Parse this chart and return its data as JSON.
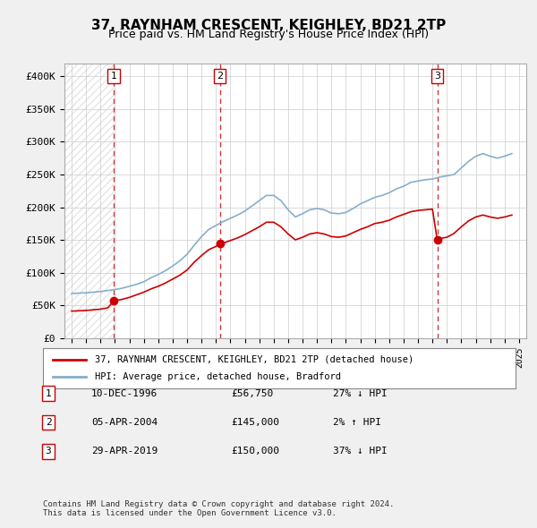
{
  "title": "37, RAYNHAM CRESCENT, KEIGHLEY, BD21 2TP",
  "subtitle": "Price paid vs. HM Land Registry's House Price Index (HPI)",
  "ylabel": "",
  "ylim": [
    0,
    420000
  ],
  "yticks": [
    0,
    50000,
    100000,
    150000,
    200000,
    250000,
    300000,
    350000,
    400000
  ],
  "ytick_labels": [
    "£0",
    "£50K",
    "£100K",
    "£150K",
    "£200K",
    "£250K",
    "£300K",
    "£350K",
    "£400K"
  ],
  "background_color": "#f0f0f0",
  "plot_bg_color": "#ffffff",
  "hpi_line_color": "#87AECB",
  "price_line_color": "#cc0000",
  "vline_color": "#cc0000",
  "grid_color": "#cccccc",
  "transactions": [
    {
      "date": 1996.93,
      "price": 56750,
      "label": "1"
    },
    {
      "date": 2004.26,
      "price": 145000,
      "label": "2"
    },
    {
      "date": 2019.33,
      "price": 150000,
      "label": "3"
    }
  ],
  "legend_entry1": "37, RAYNHAM CRESCENT, KEIGHLEY, BD21 2TP (detached house)",
  "legend_entry2": "HPI: Average price, detached house, Bradford",
  "table_rows": [
    {
      "num": "1",
      "date": "10-DEC-1996",
      "price": "£56,750",
      "hpi": "27% ↓ HPI"
    },
    {
      "num": "2",
      "date": "05-APR-2004",
      "price": "£145,000",
      "hpi": "2% ↑ HPI"
    },
    {
      "num": "3",
      "date": "29-APR-2019",
      "price": "£150,000",
      "hpi": "37% ↓ HPI"
    }
  ],
  "footer": "Contains HM Land Registry data © Crown copyright and database right 2024.\nThis data is licensed under the Open Government Licence v3.0.",
  "hpi_data_x": [
    1994.0,
    1994.5,
    1995.0,
    1995.5,
    1996.0,
    1996.5,
    1997.0,
    1997.5,
    1998.0,
    1998.5,
    1999.0,
    1999.5,
    2000.0,
    2000.5,
    2001.0,
    2001.5,
    2002.0,
    2002.5,
    2003.0,
    2003.5,
    2004.0,
    2004.5,
    2005.0,
    2005.5,
    2006.0,
    2006.5,
    2007.0,
    2007.5,
    2008.0,
    2008.5,
    2009.0,
    2009.5,
    2010.0,
    2010.5,
    2011.0,
    2011.5,
    2012.0,
    2012.5,
    2013.0,
    2013.5,
    2014.0,
    2014.5,
    2015.0,
    2015.5,
    2016.0,
    2016.5,
    2017.0,
    2017.5,
    2018.0,
    2018.5,
    2019.0,
    2019.5,
    2020.0,
    2020.5,
    2021.0,
    2021.5,
    2022.0,
    2022.5,
    2023.0,
    2023.5,
    2024.0,
    2024.5
  ],
  "hpi_data_y": [
    68000,
    68500,
    69000,
    70000,
    71000,
    72500,
    74000,
    76000,
    79000,
    82000,
    86000,
    92000,
    97000,
    103000,
    110000,
    118000,
    128000,
    142000,
    155000,
    166000,
    172000,
    178000,
    183000,
    188000,
    194000,
    202000,
    210000,
    218000,
    218000,
    210000,
    196000,
    185000,
    190000,
    196000,
    198000,
    196000,
    191000,
    190000,
    192000,
    198000,
    205000,
    210000,
    215000,
    218000,
    222000,
    228000,
    232000,
    238000,
    240000,
    242000,
    243000,
    246000,
    248000,
    250000,
    260000,
    270000,
    278000,
    282000,
    278000,
    275000,
    278000,
    282000
  ],
  "price_line_x": [
    1994.0,
    1994.5,
    1995.0,
    1995.5,
    1996.0,
    1996.5,
    1996.93,
    1997.5,
    1998.0,
    1998.5,
    1999.0,
    1999.5,
    2000.0,
    2000.5,
    2001.0,
    2001.5,
    2002.0,
    2002.5,
    2003.0,
    2003.5,
    2004.0,
    2004.26,
    2004.5,
    2005.0,
    2005.5,
    2006.0,
    2006.5,
    2007.0,
    2007.5,
    2008.0,
    2008.5,
    2009.0,
    2009.5,
    2010.0,
    2010.5,
    2011.0,
    2011.5,
    2012.0,
    2012.5,
    2013.0,
    2013.5,
    2014.0,
    2014.5,
    2015.0,
    2015.5,
    2016.0,
    2016.5,
    2017.0,
    2017.5,
    2018.0,
    2018.5,
    2019.0,
    2019.33,
    2019.5,
    2020.0,
    2020.5,
    2021.0,
    2021.5,
    2022.0,
    2022.5,
    2023.0,
    2023.5,
    2024.0,
    2024.5
  ],
  "price_line_y": [
    41000,
    41500,
    42000,
    43000,
    44000,
    46000,
    56750,
    59000,
    62000,
    66000,
    70000,
    75000,
    79000,
    84000,
    90000,
    96000,
    104000,
    116000,
    126000,
    135000,
    140000,
    145000,
    145000,
    149000,
    153000,
    158000,
    164000,
    170000,
    177000,
    177000,
    170000,
    159000,
    150000,
    154000,
    159000,
    161000,
    159000,
    155000,
    154000,
    156000,
    161000,
    166000,
    170000,
    175000,
    177000,
    180000,
    185000,
    189000,
    193000,
    195000,
    196000,
    197000,
    150000,
    152000,
    154000,
    160000,
    170000,
    179000,
    185000,
    188000,
    185000,
    183000,
    185000,
    188000
  ]
}
